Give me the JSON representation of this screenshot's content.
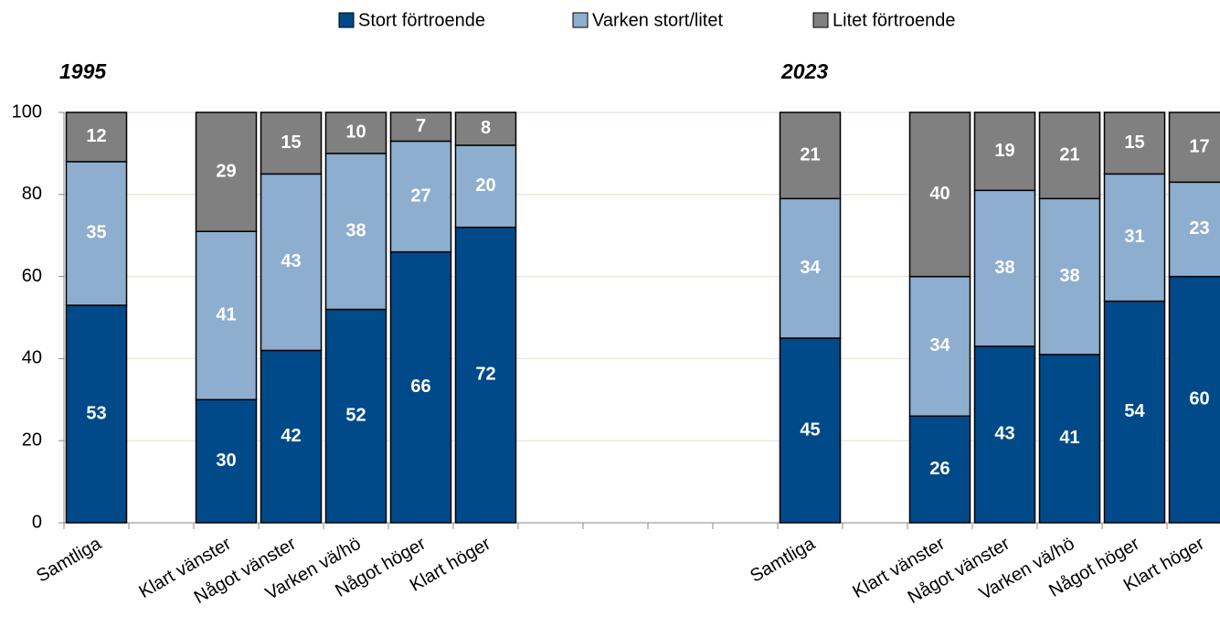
{
  "chart_data": {
    "type": "stacked_bar",
    "annotations": [
      "1995",
      "2023"
    ],
    "categories": [
      "Samtliga",
      null,
      "Klart vänster",
      "Något vänster",
      "Varken vä/hö",
      "Något höger",
      "Klart höger",
      null,
      null,
      null,
      null,
      "Samtliga",
      null,
      "Klart vänster",
      "Något vänster",
      "Varken vä/hö",
      "Något höger",
      "Klart höger"
    ],
    "series": [
      {
        "name": "Stort förtroende",
        "color": "#004a8a",
        "values": [
          53,
          null,
          30,
          42,
          52,
          66,
          72,
          null,
          null,
          null,
          null,
          45,
          null,
          26,
          43,
          41,
          54,
          60
        ]
      },
      {
        "name": "Varken stort/litet",
        "color": "#8eaecf",
        "values": [
          35,
          null,
          41,
          43,
          38,
          27,
          20,
          null,
          null,
          null,
          null,
          34,
          null,
          34,
          38,
          38,
          31,
          23
        ]
      },
      {
        "name": "Litet förtroende",
        "color": "#808080",
        "values": [
          12,
          null,
          29,
          15,
          10,
          7,
          8,
          null,
          null,
          null,
          null,
          21,
          null,
          40,
          19,
          21,
          15,
          17
        ]
      }
    ],
    "ylim": [
      0,
      100
    ],
    "yticks": [
      0,
      20,
      40,
      60,
      80,
      100
    ],
    "grid": true,
    "legend": "top"
  }
}
